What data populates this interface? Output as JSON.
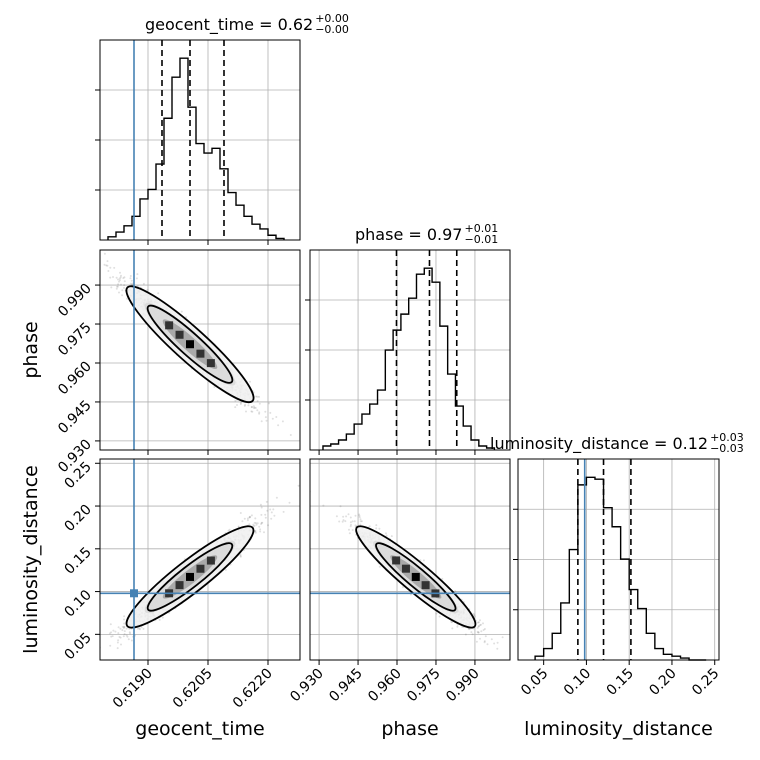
{
  "chart_data": {
    "type": "corner",
    "parameters": [
      "geocent_time",
      "phase",
      "luminosity_distance"
    ],
    "axis_labels": {
      "geocent_time": "geocent_time",
      "phase": "phase",
      "luminosity_distance": "luminosity_distance"
    },
    "ranges": {
      "geocent_time": [
        0.6178,
        0.6228
      ],
      "phase": [
        0.9265,
        1.0035
      ],
      "luminosity_distance": [
        0.02,
        0.255
      ]
    },
    "ticks": {
      "geocent_time": [
        0.619,
        0.6205,
        0.622
      ],
      "phase": [
        0.93,
        0.945,
        0.96,
        0.975,
        0.99
      ],
      "luminosity_distance": [
        0.05,
        0.1,
        0.15,
        0.2,
        0.25
      ]
    },
    "tick_labels": {
      "geocent_time": [
        "0.6190",
        "0.6205",
        "0.6220"
      ],
      "phase": [
        "0.930",
        "0.945",
        "0.960",
        "0.975",
        "0.990"
      ],
      "luminosity_distance": [
        "0.05",
        "0.10",
        "0.15",
        "0.20",
        "0.25"
      ]
    },
    "titles": [
      {
        "param": "geocent_time",
        "text": "geocent_time = 0.62",
        "plus": "+0.00",
        "minus": "−0.00"
      },
      {
        "param": "phase",
        "text": "phase = 0.97",
        "plus": "+0.01",
        "minus": "−0.01"
      },
      {
        "param": "luminosity_distance",
        "text": "luminosity_distance = 0.12",
        "plus": "+0.03",
        "minus": "−0.03"
      }
    ],
    "truths": {
      "geocent_time": 0.61865,
      "phase": null,
      "luminosity_distance": 0.098
    },
    "quantiles": {
      "geocent_time": [
        0.61935,
        0.62005,
        0.6209
      ],
      "phase": [
        0.9598,
        0.9725,
        0.983
      ],
      "luminosity_distance": [
        0.09,
        0.12,
        0.152
      ]
    },
    "histograms": {
      "geocent_time": {
        "edges": [
          0.618,
          0.6182,
          0.6184,
          0.6186,
          0.6188,
          0.619,
          0.6192,
          0.6194,
          0.6196,
          0.6198,
          0.62,
          0.6202,
          0.6204,
          0.6206,
          0.6208,
          0.621,
          0.6212,
          0.6214,
          0.6216,
          0.6218,
          0.622,
          0.6222,
          0.6224
        ],
        "counts": [
          2,
          5,
          9,
          15,
          26,
          32,
          48,
          77,
          103,
          115,
          84,
          61,
          55,
          58,
          45,
          30,
          22,
          15,
          10,
          7,
          3,
          1
        ]
      },
      "phase": {
        "edges": [
          0.9315,
          0.9345,
          0.9375,
          0.9405,
          0.9435,
          0.9465,
          0.9495,
          0.9525,
          0.9555,
          0.9585,
          0.9615,
          0.9645,
          0.9675,
          0.9705,
          0.9735,
          0.9765,
          0.9795,
          0.9825,
          0.9855,
          0.9885,
          0.9915,
          0.9945,
          0.9975
        ],
        "counts": [
          2,
          3,
          5,
          8,
          13,
          18,
          23,
          30,
          50,
          60,
          68,
          76,
          88,
          91,
          84,
          62,
          38,
          22,
          12,
          5,
          2,
          1
        ]
      },
      "luminosity_distance": {
        "edges": [
          0.04,
          0.05,
          0.06,
          0.07,
          0.08,
          0.09,
          0.1,
          0.11,
          0.12,
          0.13,
          0.14,
          0.15,
          0.16,
          0.17,
          0.18,
          0.19,
          0.2,
          0.21,
          0.22,
          0.23,
          0.24
        ],
        "counts": [
          2,
          6,
          14,
          30,
          58,
          92,
          96,
          95,
          80,
          70,
          53,
          37,
          27,
          14,
          6,
          3,
          2,
          1,
          0,
          0
        ]
      }
    },
    "grid": true,
    "legend": "none"
  }
}
